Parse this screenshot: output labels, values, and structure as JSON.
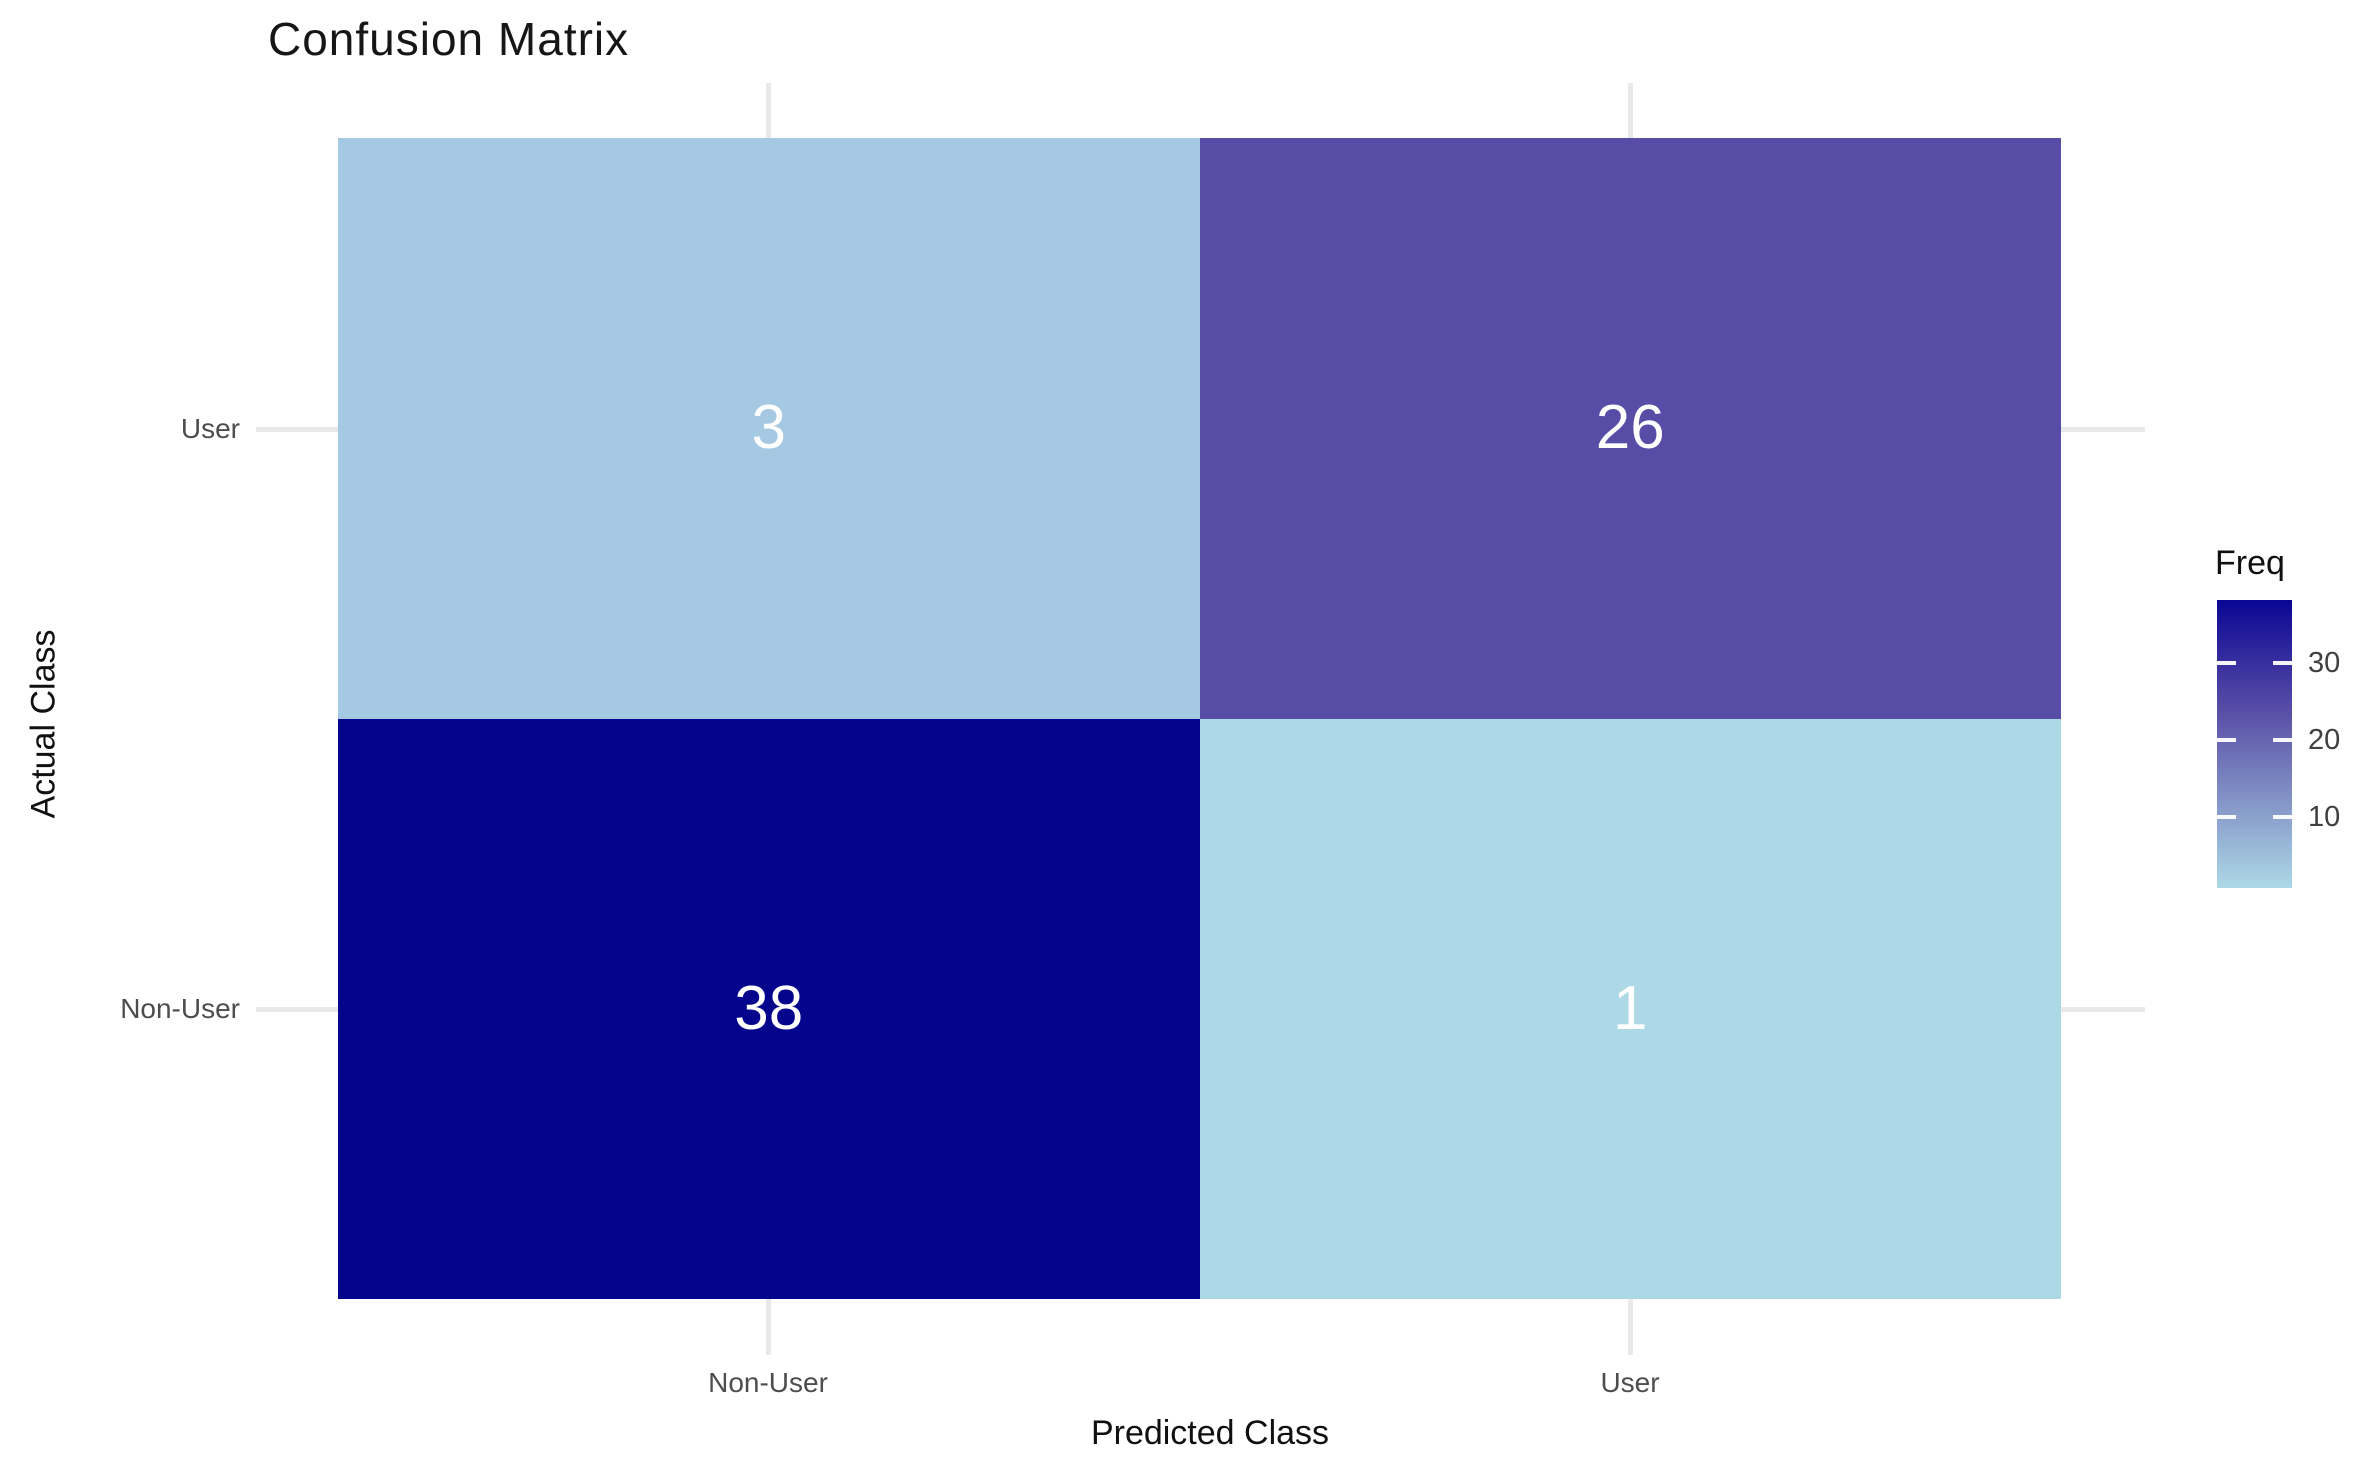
{
  "title": "Confusion Matrix",
  "chart_data": {
    "type": "heatmap",
    "title": "Confusion Matrix",
    "xlabel": "Predicted Class",
    "ylabel": "Actual Class",
    "x_categories": [
      "Non-User",
      "User"
    ],
    "y_categories_top_to_bottom": [
      "User",
      "Non-User"
    ],
    "cells": [
      {
        "actual": "User",
        "predicted": "Non-User",
        "value": 3,
        "color": "#A5C9E2"
      },
      {
        "actual": "User",
        "predicted": "User",
        "value": 26,
        "color": "#574CA6"
      },
      {
        "actual": "Non-User",
        "predicted": "Non-User",
        "value": 38,
        "color": "#04058C"
      },
      {
        "actual": "Non-User",
        "predicted": "User",
        "value": 1,
        "color": "#ADD8E6"
      }
    ],
    "value_label_color": "#FFFFFF",
    "legend": {
      "title": "Freq",
      "ticks": [
        "30",
        "20",
        "10"
      ],
      "value_range": [
        1,
        38
      ],
      "position": "right",
      "gradient_stops": [
        {
          "offset": "0%",
          "color": "#0A0694"
        },
        {
          "offset": "38%",
          "color": "#584DA6"
        },
        {
          "offset": "100%",
          "color": "#ADD8E6"
        }
      ]
    },
    "layout": {
      "grid": "off",
      "tick_line_color": "#E9E9E9",
      "tick_label_color": "#4D4D4D",
      "background": "#FFFFFF"
    }
  }
}
